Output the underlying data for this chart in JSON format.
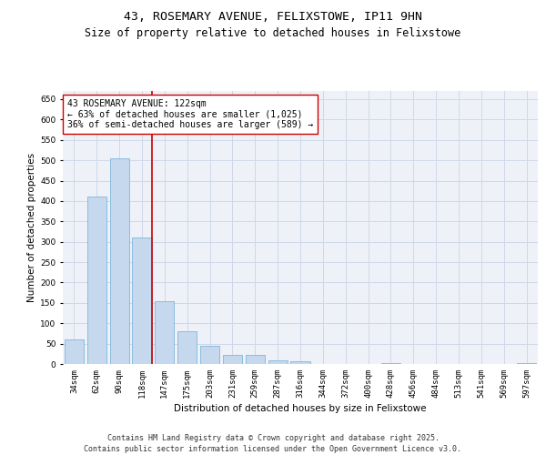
{
  "title_line1": "43, ROSEMARY AVENUE, FELIXSTOWE, IP11 9HN",
  "title_line2": "Size of property relative to detached houses in Felixstowe",
  "xlabel": "Distribution of detached houses by size in Felixstowe",
  "ylabel": "Number of detached properties",
  "categories": [
    "34sqm",
    "62sqm",
    "90sqm",
    "118sqm",
    "147sqm",
    "175sqm",
    "203sqm",
    "231sqm",
    "259sqm",
    "287sqm",
    "316sqm",
    "344sqm",
    "372sqm",
    "400sqm",
    "428sqm",
    "456sqm",
    "484sqm",
    "513sqm",
    "541sqm",
    "569sqm",
    "597sqm"
  ],
  "values": [
    60,
    410,
    505,
    310,
    155,
    80,
    45,
    22,
    22,
    10,
    7,
    0,
    0,
    0,
    3,
    0,
    0,
    0,
    0,
    0,
    3
  ],
  "bar_color": "#c5d8ed",
  "bar_edge_color": "#6aaed6",
  "property_line_color": "#cc0000",
  "annotation_text": "43 ROSEMARY AVENUE: 122sqm\n← 63% of detached houses are smaller (1,025)\n36% of semi-detached houses are larger (589) →",
  "annotation_box_color": "#ffffff",
  "annotation_box_edge": "#cc0000",
  "ylim": [
    0,
    670
  ],
  "yticks": [
    0,
    50,
    100,
    150,
    200,
    250,
    300,
    350,
    400,
    450,
    500,
    550,
    600,
    650
  ],
  "grid_color": "#d0d8e8",
  "background_color": "#eef2f8",
  "footer_text": "Contains HM Land Registry data © Crown copyright and database right 2025.\nContains public sector information licensed under the Open Government Licence v3.0.",
  "title_fontsize": 9.5,
  "subtitle_fontsize": 8.5,
  "axis_label_fontsize": 7.5,
  "tick_fontsize": 6.5,
  "annotation_fontsize": 7,
  "footer_fontsize": 6
}
